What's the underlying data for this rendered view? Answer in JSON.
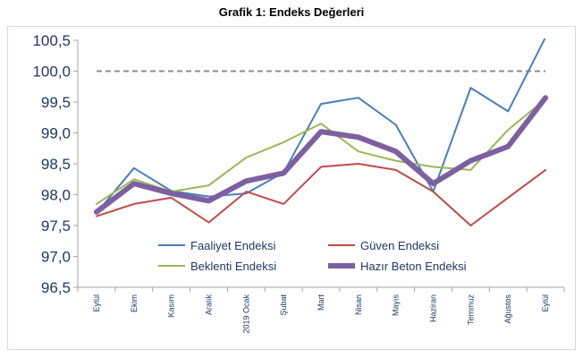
{
  "chart_data": {
    "type": "line",
    "title": "Grafik 1: Endeks Değerleri",
    "xlabel": "",
    "ylabel": "",
    "ylim": [
      96.5,
      100.5
    ],
    "yticks": [
      "100,5",
      "100,0",
      "99,5",
      "99,0",
      "98,5",
      "98,0",
      "97,5",
      "97,0",
      "96,5"
    ],
    "reference_line": 100.0,
    "categories": [
      "Eylül",
      "Ekim",
      "Kasım",
      "Aralık",
      "2019 Ocak",
      "Şubat",
      "Mart",
      "Nisan",
      "Mayıs",
      "Haziran",
      "Temmuz",
      "Ağustos",
      "Eylül"
    ],
    "series": [
      {
        "name": "Faaliyet Endeksi",
        "color": "#4a7ebb",
        "width": 2,
        "values": [
          97.7,
          98.43,
          98.06,
          97.97,
          98.02,
          98.36,
          99.47,
          99.57,
          99.13,
          98.05,
          99.73,
          99.35,
          100.55
        ]
      },
      {
        "name": "Güven Endeksi",
        "color": "#be4b48",
        "width": 2,
        "values": [
          97.65,
          97.85,
          97.95,
          97.55,
          98.05,
          97.85,
          98.45,
          98.5,
          98.4,
          98.05,
          97.5,
          97.95,
          98.4
        ]
      },
      {
        "name": "Beklenti Endeksi",
        "color": "#98b954",
        "width": 2,
        "values": [
          97.85,
          98.25,
          98.05,
          98.15,
          98.6,
          98.85,
          99.15,
          98.7,
          98.55,
          98.45,
          98.4,
          99.05,
          99.55
        ]
      },
      {
        "name": "Hazır Beton Endeksi",
        "color": "#7d60a0",
        "width": 6,
        "values": [
          97.72,
          98.18,
          98.02,
          97.9,
          98.22,
          98.35,
          99.02,
          98.93,
          98.7,
          98.18,
          98.55,
          98.78,
          99.57
        ]
      }
    ],
    "legend": "inside-bottom",
    "grid": false
  }
}
